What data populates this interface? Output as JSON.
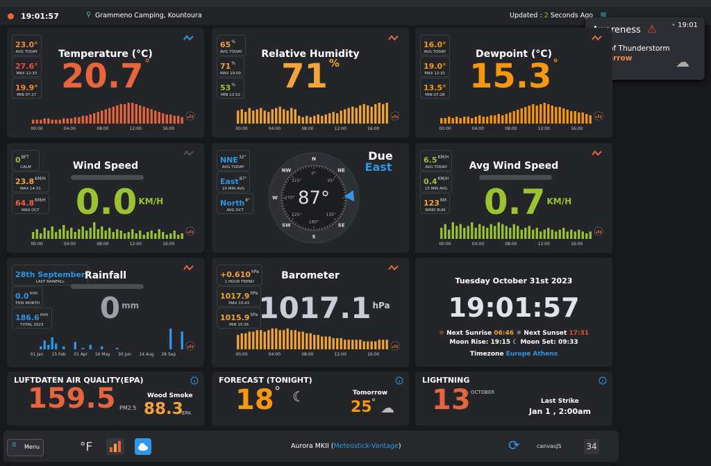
{
  "topbar": {
    "time": "19:01:57",
    "location": "Grammeno Camping, Kountoura",
    "updated_prefix": "Updated :",
    "updated_count": "2",
    "updated_suffix": "Seconds Ago"
  },
  "awareness": {
    "title": "Awareness",
    "time": "19:01",
    "risk": "Risk of Thunderstorm",
    "when": "Tomorrow"
  },
  "hour_axis": [
    "00:00",
    "04:00",
    "08:00",
    "12:00",
    "16:00"
  ],
  "temperature": {
    "title": "Temperature (°C)",
    "value": "20.7",
    "unit": "°",
    "color": "#e8643c",
    "stats": [
      {
        "value": "23.0°",
        "label": "AVG TODAY",
        "color": "#f08a3a"
      },
      {
        "value": "27.6°",
        "label": "MAX 12:33",
        "color": "#e8503a"
      },
      {
        "value": "19.9°",
        "label": "MIN 07:17",
        "color": "#f08a3a"
      }
    ],
    "spark": [
      3,
      3,
      3,
      4,
      4,
      3,
      3,
      3,
      4,
      4,
      4,
      5,
      5,
      6,
      6,
      7,
      8,
      9,
      10,
      11,
      12,
      13,
      14,
      15,
      15,
      16,
      16,
      15,
      14,
      13,
      12,
      11,
      10,
      9,
      8,
      7,
      7,
      6,
      6,
      5
    ]
  },
  "humidity": {
    "title": "Relative Humidity",
    "value": "71",
    "unit": "%",
    "color": "#f2a43a",
    "stats": [
      {
        "value": "65",
        "unit": "%",
        "label": "AVG TODAY",
        "color": "#f2a43a"
      },
      {
        "value": "71",
        "unit": "%",
        "label": "MAX 19:00",
        "color": "#f2a43a"
      },
      {
        "value": "53",
        "unit": "%",
        "label": "MIN 12:52",
        "color": "#9ac233"
      }
    ],
    "spark": [
      10,
      11,
      9,
      12,
      10,
      11,
      12,
      10,
      9,
      11,
      12,
      13,
      11,
      10,
      12,
      11,
      6,
      5,
      6,
      5,
      6,
      7,
      6,
      7,
      8,
      9,
      8,
      10,
      11,
      12,
      13,
      12,
      14,
      15,
      14,
      13,
      15,
      16,
      15,
      16
    ]
  },
  "dewpoint": {
    "title": "Dewpoint (°C)",
    "value": "15.3",
    "unit": "°",
    "color": "#f7960f",
    "stats": [
      {
        "value": "16.0°",
        "label": "AVG TODAY",
        "color": "#f7960f"
      },
      {
        "value": "19.0°",
        "label": "MAX 12:31",
        "color": "#f7960f"
      },
      {
        "value": "13.5°",
        "label": "MIN 07:28",
        "color": "#f7960f"
      }
    ],
    "spark": [
      4,
      4,
      5,
      4,
      5,
      4,
      5,
      5,
      4,
      5,
      6,
      5,
      5,
      6,
      6,
      7,
      6,
      7,
      8,
      9,
      10,
      11,
      12,
      13,
      14,
      13,
      14,
      15,
      14,
      13,
      12,
      12,
      11,
      10,
      9,
      9,
      8,
      8,
      7,
      6
    ]
  },
  "wind": {
    "title": "Wind Speed",
    "value": "0.0",
    "unit": "KM/H",
    "color": "#9ac233",
    "stats": [
      {
        "value": "0",
        "unit": "BFT",
        "label": "CALM",
        "color": "#9ac233"
      },
      {
        "value": "23.8",
        "unit": "KM/H",
        "label": "MAX 14:31",
        "color": "#f2a43a"
      },
      {
        "value": "64.8",
        "unit": "KM/H",
        "label": "MAX OCT",
        "color": "#e8643c"
      }
    ],
    "spark": [
      5,
      7,
      4,
      8,
      6,
      9,
      5,
      7,
      10,
      6,
      8,
      5,
      7,
      9,
      6,
      8,
      12,
      7,
      9,
      6,
      8,
      5,
      7,
      6,
      4,
      5,
      7,
      4,
      6,
      3,
      5,
      6,
      4,
      7,
      5,
      3,
      4,
      6,
      3,
      4
    ]
  },
  "compass": {
    "heading_prefix": "Due",
    "heading": "East",
    "direction": 87,
    "direction_label": "87°",
    "points": [
      "N",
      "NE",
      "E",
      "SE",
      "S",
      "SW",
      "W",
      "NW"
    ],
    "degrees": [
      {
        "value": 0,
        "label": "0°"
      },
      {
        "value": 45,
        "label": "45°"
      },
      {
        "value": 135,
        "label": "135°"
      },
      {
        "value": 180,
        "label": "180°"
      },
      {
        "value": 225,
        "label": "225°"
      },
      {
        "value": 270,
        "label": "270°"
      },
      {
        "value": 315,
        "label": "315°"
      }
    ],
    "stats": [
      {
        "value": "NNE",
        "unit": "32°",
        "label": "AVG TODAY",
        "color": "#2f96e8"
      },
      {
        "value": "East",
        "unit": "87°",
        "label": "10 MIN AVG",
        "color": "#2f96e8"
      },
      {
        "value": "North",
        "unit": "8°",
        "label": "AVG OCT",
        "color": "#2f96e8"
      }
    ]
  },
  "avg_wind": {
    "title": "Avg Wind Speed",
    "value": "0.7",
    "unit": "KM/H",
    "color": "#9ac233",
    "stats": [
      {
        "value": "6.5",
        "unit": "KM/H",
        "label": "AVG TODAY",
        "color": "#9ac233"
      },
      {
        "value": "0.4",
        "unit": "KM/H",
        "label": "15 MIN AVG",
        "color": "#9ac233"
      },
      {
        "value": "123",
        "unit": "KM",
        "label": "WIND RUN",
        "color": "#f2a43a"
      }
    ],
    "spark": [
      6,
      8,
      5,
      9,
      7,
      8,
      6,
      7,
      9,
      6,
      8,
      7,
      6,
      8,
      7,
      9,
      8,
      7,
      6,
      8,
      7,
      5,
      6,
      7,
      5,
      6,
      4,
      5,
      6,
      5,
      4,
      5,
      6,
      4,
      5,
      4,
      5,
      4,
      3,
      4
    ]
  },
  "rainfall": {
    "title": "Rainfall",
    "value": "0",
    "unit": "mm",
    "color": "#9aa0a8",
    "spark_color": "#2f96e8",
    "stats": [
      {
        "value": "28th September",
        "label": "LAST RAINFALL",
        "color": "#2f96e8"
      },
      {
        "value": "0.0",
        "unit": "mm",
        "label": "THIS MONTH",
        "color": "#2f96e8"
      },
      {
        "value": "186.6",
        "unit": "mm",
        "label": "TOTAL 2023",
        "color": "#2f96e8"
      }
    ],
    "axis": [
      "01 Jan",
      "15 Feb",
      "01 Apr",
      "16 May",
      "30 Jun",
      "14 Aug",
      "28 Sep"
    ],
    "spark": [
      0,
      0,
      2,
      6,
      3,
      8,
      4,
      0,
      2,
      0,
      0,
      5,
      0,
      1,
      0,
      3,
      0,
      0,
      2,
      0,
      0,
      0,
      1,
      0,
      0,
      0,
      0,
      0,
      0,
      0,
      0,
      0,
      0,
      0,
      0,
      0,
      14,
      0,
      0,
      12
    ]
  },
  "barometer": {
    "title": "Barometer",
    "value": "1017.1",
    "unit": "hPa",
    "color": "#c8cdd6",
    "spark_color": "#f2a43a",
    "stats": [
      {
        "value": "+0.610",
        "unit": "hPa",
        "label": "1 HOUR TREND",
        "color": "#f2a43a"
      },
      {
        "value": "1017.9",
        "unit": "hPa",
        "label": "MAX 10:43",
        "color": "#f2a43a"
      },
      {
        "value": "1015.9",
        "unit": "hPa",
        "label": "MIN 15:36",
        "color": "#f2a43a"
      }
    ],
    "spark": [
      9,
      10,
      10,
      11,
      11,
      12,
      12,
      11,
      12,
      13,
      13,
      12,
      12,
      13,
      12,
      12,
      11,
      11,
      10,
      10,
      9,
      9,
      8,
      8,
      8,
      7,
      7,
      7,
      6,
      6,
      6,
      6,
      6,
      5,
      5,
      5,
      5,
      6,
      6,
      6
    ]
  },
  "clock": {
    "date": "Tuesday October 31st 2023",
    "time": "19:01:57",
    "sunrise_label": "Next Sunrise",
    "sunrise": "06:46",
    "sunset_label": "Next Sunset",
    "sunset": "17:31",
    "moonrise": "Moon Rise: 19:15",
    "moonset": "Moon Set: 09:33",
    "timezone_label": "Timezone",
    "timezone": "Europe Athens"
  },
  "air": {
    "title": "LUFTDATEN AIR QUALITY(EPA)",
    "value": "159.5",
    "unit": "PM2.5",
    "secondary_label": "Wood Smoke",
    "secondary_value": "88.3",
    "secondary_unit": "EPA"
  },
  "forecast": {
    "title": "FORECAST (TONIGHT)",
    "value": "18",
    "unit": "°",
    "tomorrow_label": "Tomorrow",
    "tomorrow_value": "25",
    "tomorrow_unit": "°"
  },
  "lightning": {
    "title": "LIGHTNING",
    "value": "13",
    "month": "OCTOBER",
    "last_label": "Last Strike",
    "last_value": "Jan 1 , 2:00am"
  },
  "bottombar": {
    "menu": "Menu",
    "units": "°F",
    "station_prefix": "Aurora MKII (",
    "station_link": "Meteostick-Vantage",
    "station_suffix": ")",
    "brand": "canvasJS",
    "calendar": "34"
  }
}
